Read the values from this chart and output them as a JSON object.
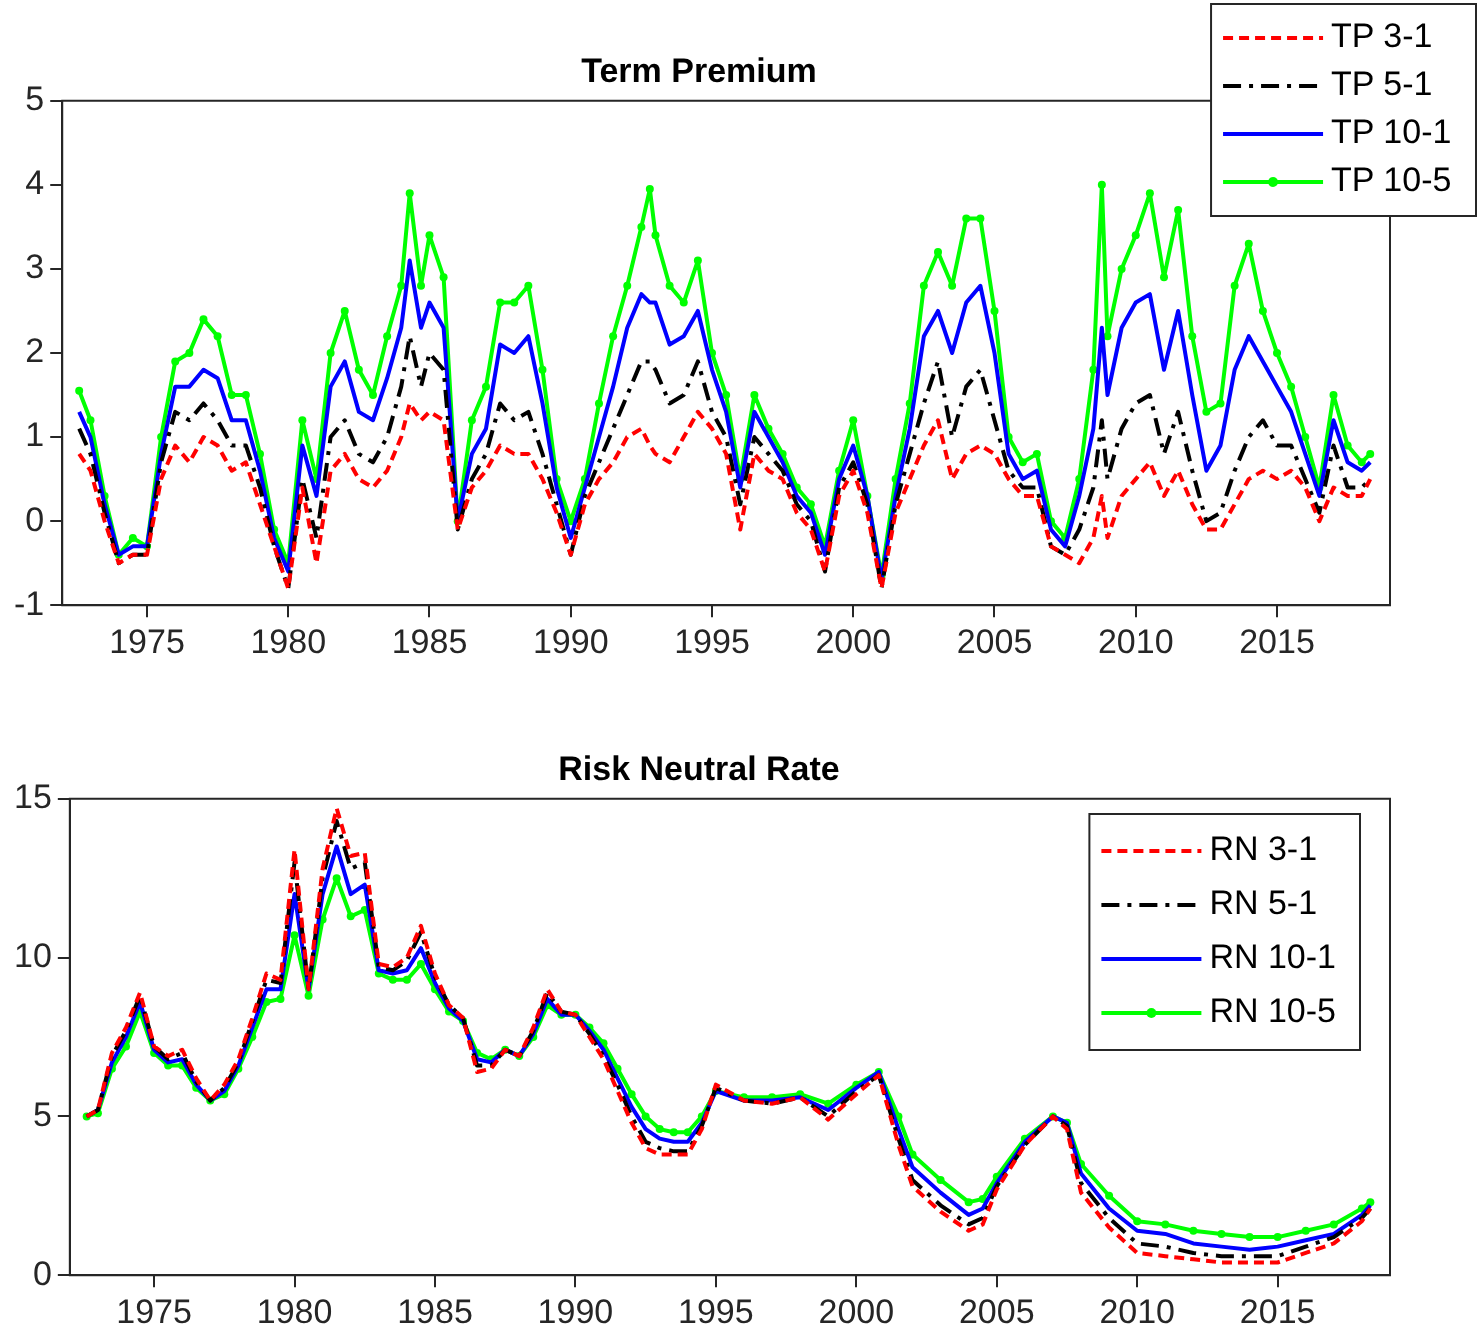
{
  "chart_data": [
    {
      "type": "line",
      "title": "Term Premium",
      "legend": "top right",
      "grid": false,
      "xlim": [
        1972,
        2019
      ],
      "xticks": [
        1975,
        1980,
        1985,
        1990,
        1995,
        2000,
        2005,
        2010,
        2015
      ],
      "ylim": [
        -1,
        5
      ],
      "yticks": [
        -1,
        0,
        1,
        2,
        3,
        4,
        5
      ],
      "x": [
        1972.6,
        1973.0,
        1973.5,
        1974.0,
        1974.5,
        1975.0,
        1975.5,
        1976.0,
        1976.5,
        1977.0,
        1977.5,
        1978.0,
        1978.5,
        1979.0,
        1979.5,
        1980.0,
        1980.5,
        1981.0,
        1981.5,
        1982.0,
        1982.5,
        1983.0,
        1983.5,
        1984.0,
        1984.3,
        1984.7,
        1985.0,
        1985.5,
        1986.0,
        1986.5,
        1987.0,
        1987.5,
        1988.0,
        1988.5,
        1989.0,
        1989.5,
        1990.0,
        1990.5,
        1991.0,
        1991.5,
        1992.0,
        1992.5,
        1992.8,
        1993.0,
        1993.5,
        1994.0,
        1994.5,
        1995.0,
        1995.5,
        1996.0,
        1996.5,
        1997.0,
        1997.5,
        1998.0,
        1998.5,
        1999.0,
        1999.5,
        2000.0,
        2000.5,
        2001.0,
        2001.5,
        2002.0,
        2002.5,
        2003.0,
        2003.5,
        2004.0,
        2004.5,
        2005.0,
        2005.5,
        2006.0,
        2006.5,
        2007.0,
        2007.5,
        2008.0,
        2008.5,
        2008.8,
        2009.0,
        2009.5,
        2010.0,
        2010.5,
        2011.0,
        2011.5,
        2012.0,
        2012.5,
        2013.0,
        2013.5,
        2014.0,
        2014.5,
        2015.0,
        2015.5,
        2016.0,
        2016.5,
        2017.0,
        2017.5,
        2018.0,
        2018.3
      ],
      "series": [
        {
          "name": "TP 3-1",
          "color": "#ff0000",
          "line_style": "dashed",
          "marker": "none",
          "values": [
            0.8,
            0.6,
            0.0,
            -0.5,
            -0.4,
            -0.4,
            0.5,
            0.9,
            0.7,
            1.0,
            0.9,
            0.6,
            0.7,
            0.2,
            -0.3,
            -0.8,
            0.4,
            -0.5,
            0.6,
            0.8,
            0.5,
            0.4,
            0.6,
            1.0,
            1.4,
            1.2,
            1.3,
            1.2,
            -0.1,
            0.4,
            0.6,
            0.9,
            0.8,
            0.8,
            0.5,
            0.1,
            -0.4,
            0.2,
            0.5,
            0.7,
            1.0,
            1.1,
            0.9,
            0.8,
            0.7,
            1.0,
            1.3,
            1.1,
            0.8,
            -0.1,
            0.8,
            0.6,
            0.5,
            0.1,
            -0.1,
            -0.6,
            0.3,
            0.6,
            0.1,
            -0.8,
            0.1,
            0.5,
            0.9,
            1.2,
            0.5,
            0.8,
            0.9,
            0.8,
            0.5,
            0.3,
            0.3,
            -0.3,
            -0.4,
            -0.5,
            -0.2,
            0.3,
            -0.2,
            0.3,
            0.5,
            0.7,
            0.3,
            0.6,
            0.2,
            -0.1,
            -0.1,
            0.2,
            0.5,
            0.6,
            0.5,
            0.6,
            0.4,
            0.0,
            0.4,
            0.3,
            0.3,
            0.5
          ]
        },
        {
          "name": "TP 5-1",
          "color": "#000000",
          "line_style": "dashdot",
          "marker": "none",
          "values": [
            1.1,
            0.8,
            0.1,
            -0.5,
            -0.4,
            -0.4,
            0.7,
            1.3,
            1.2,
            1.4,
            1.2,
            0.9,
            0.9,
            0.4,
            -0.3,
            -0.8,
            0.5,
            -0.2,
            1.0,
            1.2,
            0.8,
            0.7,
            1.0,
            1.6,
            2.2,
            1.6,
            2.0,
            1.8,
            -0.1,
            0.5,
            0.8,
            1.4,
            1.2,
            1.3,
            0.8,
            0.2,
            -0.4,
            0.3,
            0.7,
            1.1,
            1.5,
            1.9,
            1.9,
            1.8,
            1.4,
            1.5,
            1.9,
            1.3,
            1.0,
            0.2,
            1.0,
            0.8,
            0.6,
            0.2,
            0.0,
            -0.6,
            0.4,
            0.7,
            0.2,
            -0.8,
            0.2,
            0.8,
            1.4,
            1.9,
            1.0,
            1.6,
            1.8,
            1.2,
            0.6,
            0.4,
            0.4,
            -0.3,
            -0.4,
            -0.1,
            0.4,
            1.2,
            0.5,
            1.1,
            1.4,
            1.5,
            0.8,
            1.3,
            0.6,
            0.0,
            0.1,
            0.6,
            1.0,
            1.2,
            0.9,
            0.9,
            0.5,
            0.1,
            0.9,
            0.4,
            0.4,
            0.5
          ]
        },
        {
          "name": "TP 10-1",
          "color": "#0000ff",
          "line_style": "solid",
          "marker": "none",
          "values": [
            1.3,
            1.0,
            0.2,
            -0.4,
            -0.3,
            -0.3,
            0.8,
            1.6,
            1.6,
            1.8,
            1.7,
            1.2,
            1.2,
            0.6,
            -0.2,
            -0.6,
            0.9,
            0.3,
            1.6,
            1.9,
            1.3,
            1.2,
            1.7,
            2.3,
            3.1,
            2.3,
            2.6,
            2.3,
            0.0,
            0.8,
            1.1,
            2.1,
            2.0,
            2.2,
            1.4,
            0.4,
            -0.2,
            0.4,
            1.0,
            1.6,
            2.3,
            2.7,
            2.6,
            2.6,
            2.1,
            2.2,
            2.5,
            1.8,
            1.3,
            0.4,
            1.3,
            1.0,
            0.7,
            0.3,
            0.1,
            -0.4,
            0.5,
            0.9,
            0.3,
            -0.7,
            0.3,
            1.1,
            2.2,
            2.5,
            2.0,
            2.6,
            2.8,
            2.0,
            0.8,
            0.5,
            0.6,
            -0.1,
            -0.3,
            0.3,
            1.1,
            2.3,
            1.5,
            2.3,
            2.6,
            2.7,
            1.8,
            2.5,
            1.5,
            0.6,
            0.9,
            1.8,
            2.2,
            1.9,
            1.6,
            1.3,
            0.8,
            0.3,
            1.2,
            0.7,
            0.6,
            0.7
          ]
        },
        {
          "name": "TP 10-5",
          "color": "#00ff00",
          "line_style": "solid",
          "marker": "circle",
          "values": [
            1.55,
            1.2,
            0.3,
            -0.4,
            -0.2,
            -0.3,
            1.0,
            1.9,
            2.0,
            2.4,
            2.2,
            1.5,
            1.5,
            0.8,
            -0.1,
            -0.5,
            1.2,
            0.5,
            2.0,
            2.5,
            1.8,
            1.5,
            2.2,
            2.8,
            3.9,
            2.8,
            3.4,
            2.9,
            0.0,
            1.2,
            1.6,
            2.6,
            2.6,
            2.8,
            1.8,
            0.5,
            0.0,
            0.5,
            1.4,
            2.2,
            2.8,
            3.5,
            3.95,
            3.4,
            2.8,
            2.6,
            3.1,
            2.0,
            1.5,
            0.5,
            1.5,
            1.1,
            0.8,
            0.4,
            0.2,
            -0.3,
            0.6,
            1.2,
            0.3,
            -0.65,
            0.5,
            1.4,
            2.8,
            3.2,
            2.8,
            3.6,
            3.6,
            2.5,
            1.0,
            0.7,
            0.8,
            0.0,
            -0.2,
            0.5,
            1.8,
            4.0,
            2.2,
            3.0,
            3.4,
            3.9,
            2.9,
            3.7,
            2.2,
            1.3,
            1.4,
            2.8,
            3.3,
            2.5,
            2.0,
            1.6,
            1.0,
            0.4,
            1.5,
            0.9,
            0.7,
            0.8
          ]
        }
      ]
    },
    {
      "type": "line",
      "title": "Risk Neutral Rate",
      "legend": "top right",
      "grid": false,
      "xlim": [
        1972,
        2019
      ],
      "xticks": [
        1975,
        1980,
        1985,
        1990,
        1995,
        2000,
        2005,
        2010,
        2015
      ],
      "ylim": [
        0,
        15
      ],
      "yticks": [
        0,
        5,
        10,
        15
      ],
      "x": [
        1972.6,
        1973.0,
        1973.5,
        1974.0,
        1974.5,
        1975.0,
        1975.5,
        1976.0,
        1976.5,
        1977.0,
        1977.5,
        1978.0,
        1978.5,
        1979.0,
        1979.5,
        1980.0,
        1980.5,
        1981.0,
        1981.5,
        1982.0,
        1982.5,
        1983.0,
        1983.5,
        1984.0,
        1984.5,
        1985.0,
        1985.5,
        1986.0,
        1986.5,
        1987.0,
        1987.5,
        1988.0,
        1988.5,
        1989.0,
        1989.5,
        1990.0,
        1990.5,
        1991.0,
        1991.5,
        1992.0,
        1992.5,
        1993.0,
        1993.5,
        1994.0,
        1994.5,
        1995.0,
        1996.0,
        1997.0,
        1998.0,
        1999.0,
        2000.0,
        2000.8,
        2001.5,
        2002.0,
        2003.0,
        2004.0,
        2004.5,
        2005.0,
        2006.0,
        2007.0,
        2007.5,
        2008.0,
        2009.0,
        2010.0,
        2011.0,
        2012.0,
        2013.0,
        2014.0,
        2015.0,
        2016.0,
        2017.0,
        2018.0,
        2018.3
      ],
      "series": [
        {
          "name": "RN 3-1",
          "color": "#ff0000",
          "line_style": "dashed",
          "marker": "none",
          "values": [
            5.0,
            5.2,
            7.0,
            7.8,
            8.9,
            7.2,
            6.9,
            7.1,
            6.2,
            5.5,
            6.0,
            6.8,
            8.1,
            9.5,
            9.3,
            13.4,
            9.0,
            12.8,
            14.7,
            13.2,
            13.3,
            9.8,
            9.7,
            10.0,
            11.0,
            9.5,
            8.5,
            8.1,
            6.4,
            6.5,
            7.1,
            6.9,
            7.8,
            9.0,
            8.3,
            8.2,
            7.5,
            6.8,
            5.8,
            4.8,
            4.0,
            3.8,
            3.8,
            3.8,
            4.6,
            6.0,
            5.5,
            5.4,
            5.6,
            4.9,
            5.7,
            6.3,
            4.1,
            2.8,
            2.0,
            1.4,
            1.6,
            2.7,
            4.1,
            5.0,
            4.6,
            2.6,
            1.5,
            0.7,
            0.6,
            0.5,
            0.4,
            0.4,
            0.4,
            0.7,
            1.0,
            1.7,
            2.1
          ]
        },
        {
          "name": "RN 5-1",
          "color": "#000000",
          "line_style": "dashdot",
          "marker": "none",
          "values": [
            5.0,
            5.2,
            6.9,
            7.7,
            8.8,
            7.2,
            6.8,
            7.0,
            6.1,
            5.5,
            5.9,
            6.7,
            8.0,
            9.3,
            9.2,
            13.0,
            9.0,
            12.5,
            14.3,
            12.8,
            13.0,
            9.7,
            9.6,
            9.9,
            10.8,
            9.4,
            8.5,
            8.1,
            6.6,
            6.6,
            7.1,
            6.9,
            7.7,
            8.9,
            8.3,
            8.2,
            7.6,
            6.9,
            6.0,
            5.0,
            4.2,
            4.0,
            3.9,
            3.9,
            4.7,
            5.9,
            5.5,
            5.4,
            5.6,
            5.0,
            5.8,
            6.3,
            4.3,
            3.0,
            2.2,
            1.6,
            1.8,
            2.8,
            4.1,
            5.0,
            4.7,
            2.9,
            1.8,
            1.0,
            0.9,
            0.7,
            0.6,
            0.6,
            0.6,
            0.9,
            1.2,
            1.8,
            2.1
          ]
        },
        {
          "name": "RN 10-1",
          "color": "#0000ff",
          "line_style": "solid",
          "marker": "none",
          "values": [
            5.0,
            5.2,
            6.7,
            7.5,
            8.6,
            7.1,
            6.7,
            6.8,
            6.0,
            5.5,
            5.8,
            6.6,
            7.8,
            9.0,
            9.0,
            12.0,
            9.0,
            12.0,
            13.5,
            12.0,
            12.3,
            9.6,
            9.5,
            9.6,
            10.3,
            9.2,
            8.4,
            8.0,
            6.8,
            6.7,
            7.1,
            6.9,
            7.6,
            8.7,
            8.2,
            8.2,
            7.7,
            7.1,
            6.2,
            5.3,
            4.6,
            4.3,
            4.2,
            4.2,
            4.8,
            5.8,
            5.5,
            5.5,
            5.6,
            5.2,
            5.9,
            6.4,
            4.6,
            3.4,
            2.6,
            1.9,
            2.1,
            2.9,
            4.2,
            5.0,
            4.8,
            3.2,
            2.1,
            1.4,
            1.3,
            1.0,
            0.9,
            0.8,
            0.9,
            1.1,
            1.3,
            1.9,
            2.2
          ]
        },
        {
          "name": "RN 10-5",
          "color": "#00ff00",
          "line_style": "solid",
          "marker": "circle",
          "values": [
            5.0,
            5.1,
            6.5,
            7.2,
            8.3,
            7.0,
            6.6,
            6.6,
            5.9,
            5.5,
            5.7,
            6.5,
            7.5,
            8.6,
            8.7,
            10.7,
            8.8,
            11.2,
            12.5,
            11.3,
            11.5,
            9.5,
            9.3,
            9.3,
            9.8,
            9.0,
            8.3,
            8.0,
            7.0,
            6.8,
            7.1,
            6.9,
            7.5,
            8.5,
            8.2,
            8.2,
            7.8,
            7.3,
            6.5,
            5.7,
            5.0,
            4.6,
            4.5,
            4.5,
            5.0,
            5.8,
            5.6,
            5.6,
            5.7,
            5.4,
            6.0,
            6.4,
            5.0,
            3.8,
            3.0,
            2.3,
            2.4,
            3.1,
            4.3,
            5.0,
            4.8,
            3.5,
            2.5,
            1.7,
            1.6,
            1.4,
            1.3,
            1.2,
            1.2,
            1.4,
            1.6,
            2.1,
            2.3
          ]
        }
      ]
    }
  ]
}
